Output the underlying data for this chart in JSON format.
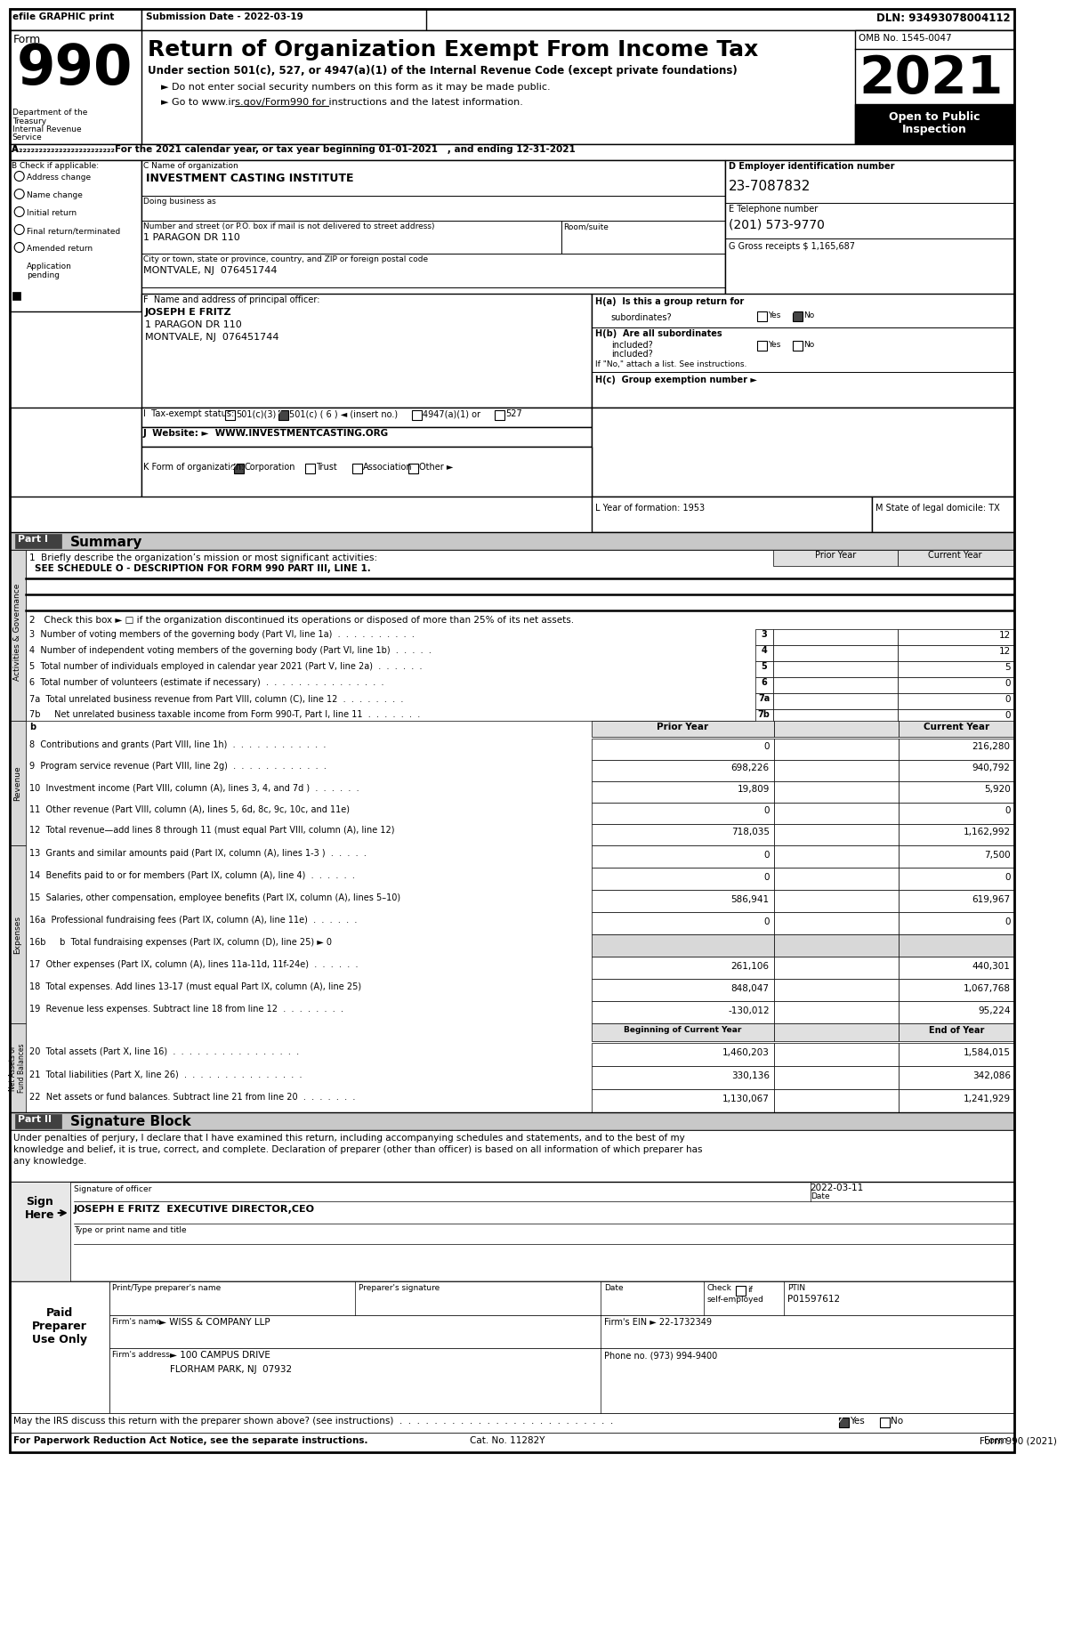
{
  "efile_line": "efile GRAPHIC print",
  "submission_date": "Submission Date - 2022-03-19",
  "dln": "DLN: 93493078004112",
  "form_number": "990",
  "title": "Return of Organization Exempt From Income Tax",
  "subtitle1": "Under section 501(c), 527, or 4947(a)(1) of the Internal Revenue Code (except private foundations)",
  "subtitle2": "► Do not enter social security numbers on this form as it may be made public.",
  "subtitle3": "► Go to www.irs.gov/Form990 for instructions and the latest information.",
  "year": "2021",
  "omb": "OMB No. 1545-0047",
  "dept": "Department of the\nTreasury\nInternal Revenue\nService",
  "line_a": "A₂₂₂₂For the 2021 calendar year, or tax year beginning 01-01-2021   , and ending 12-31-2021",
  "b_label": "B Check if applicable:",
  "c_label": "C Name of organization",
  "org_name": "INVESTMENT CASTING INSTITUTE",
  "dba_label": "Doing business as",
  "address_label": "Number and street (or P.O. box if mail is not delivered to street address)",
  "address_val": "1 PARAGON DR 110",
  "room_label": "Room/suite",
  "city_label": "City or town, state or province, country, and ZIP or foreign postal code",
  "city_val": "MONTVALE, NJ  076451744",
  "d_label": "D Employer identification number",
  "ein": "23-7087832",
  "e_label": "E Telephone number",
  "phone": "(201) 573-9770",
  "g_label": "G Gross receipts $ 1,165,687",
  "f_label": "F  Name and address of principal officer:",
  "officer_name": "JOSEPH E FRITZ",
  "officer_addr1": "1 PARAGON DR 110",
  "officer_addr2": "MONTVALE, NJ  076451744",
  "ha_label": "H(a)  Is this a group return for",
  "ha_sub": "subordinates?",
  "hb_label": "H(b)  Are all subordinates",
  "hb_sub": "included?",
  "hb_note": "If \"No,\" attach a list. See instructions.",
  "hc_label": "H(c)  Group exemption number ►",
  "i_label": "I  Tax-exempt status:",
  "j_label": "J  Website: ►  WWW.INVESTMENTCASTING.ORG",
  "k_label": "K Form of organization:",
  "l_label": "L Year of formation: 1953",
  "m_label": "M State of legal domicile: TX",
  "part1_label": "Part I",
  "part1_title": "Summary",
  "line1_label": "1  Briefly describe the organization’s mission or most significant activities:",
  "line1_val": "SEE SCHEDULE O - DESCRIPTION FOR FORM 990 PART III, LINE 1.",
  "line2_label": "2   Check this box ► □ if the organization discontinued its operations or disposed of more than 25% of its net assets.",
  "lines_345": [
    {
      "num": "3",
      "label": "Number of voting members of the governing body (Part VI, line 1a)  .  .  .  .  .  .  .  .  .  .",
      "col_num": "3",
      "prior": "",
      "current": "12"
    },
    {
      "num": "4",
      "label": "Number of independent voting members of the governing body (Part VI, line 1b)  .  .  .  .  .",
      "col_num": "4",
      "prior": "",
      "current": "12"
    },
    {
      "num": "5",
      "label": "Total number of individuals employed in calendar year 2021 (Part V, line 2a)  .  .  .  .  .  .",
      "col_num": "5",
      "prior": "",
      "current": "5"
    },
    {
      "num": "6",
      "label": "Total number of volunteers (estimate if necessary)  .  .  .  .  .  .  .  .  .  .  .  .  .  .  .",
      "col_num": "6",
      "prior": "",
      "current": "0"
    },
    {
      "num": "7a",
      "label": "Total unrelated business revenue from Part VIII, column (C), line 12  .  .  .  .  .  .  .  .",
      "col_num": "7a",
      "prior": "",
      "current": "0"
    },
    {
      "num": "7b",
      "label": "   Net unrelated business taxable income from Form 990-T, Part I, line 11  .  .  .  .  .  .  .",
      "col_num": "7b",
      "prior": "",
      "current": "0"
    }
  ],
  "revenue_lines": [
    {
      "num": "8",
      "label": "Contributions and grants (Part VIII, line 1h)  .  .  .  .  .  .  .  .  .  .  .  .",
      "prior": "0",
      "current": "216,280"
    },
    {
      "num": "9",
      "label": "Program service revenue (Part VIII, line 2g)  .  .  .  .  .  .  .  .  .  .  .  .",
      "prior": "698,226",
      "current": "940,792"
    },
    {
      "num": "10",
      "label": "Investment income (Part VIII, column (A), lines 3, 4, and 7d )  .  .  .  .  .  .",
      "prior": "19,809",
      "current": "5,920"
    },
    {
      "num": "11",
      "label": "Other revenue (Part VIII, column (A), lines 5, 6d, 8c, 9c, 10c, and 11e)",
      "prior": "0",
      "current": "0"
    },
    {
      "num": "12",
      "label": "Total revenue—add lines 8 through 11 (must equal Part VIII, column (A), line 12)",
      "prior": "718,035",
      "current": "1,162,992"
    }
  ],
  "expense_lines": [
    {
      "num": "13",
      "label": "Grants and similar amounts paid (Part IX, column (A), lines 1-3 )  .  .  .  .  .",
      "prior": "0",
      "current": "7,500",
      "gray": false
    },
    {
      "num": "14",
      "label": "Benefits paid to or for members (Part IX, column (A), line 4)  .  .  .  .  .  .",
      "prior": "0",
      "current": "0",
      "gray": false
    },
    {
      "num": "15",
      "label": "Salaries, other compensation, employee benefits (Part IX, column (A), lines 5–10)",
      "prior": "586,941",
      "current": "619,967",
      "gray": false
    },
    {
      "num": "16a",
      "label": "Professional fundraising fees (Part IX, column (A), line 11e)  .  .  .  .  .  .",
      "prior": "0",
      "current": "0",
      "gray": false
    },
    {
      "num": "16b",
      "label": "   b  Total fundraising expenses (Part IX, column (D), line 25) ► 0",
      "prior": "",
      "current": "",
      "gray": true
    },
    {
      "num": "17",
      "label": "Other expenses (Part IX, column (A), lines 11a-11d, 11f-24e)  .  .  .  .  .  .",
      "prior": "261,106",
      "current": "440,301",
      "gray": false
    },
    {
      "num": "18",
      "label": "Total expenses. Add lines 13-17 (must equal Part IX, column (A), line 25)",
      "prior": "848,047",
      "current": "1,067,768",
      "gray": false
    },
    {
      "num": "19",
      "label": "Revenue less expenses. Subtract line 18 from line 12  .  .  .  .  .  .  .  .",
      "prior": "-130,012",
      "current": "95,224",
      "gray": false
    }
  ],
  "netasset_lines": [
    {
      "num": "20",
      "label": "Total assets (Part X, line 16)  .  .  .  .  .  .  .  .  .  .  .  .  .  .  .  .",
      "prior": "1,460,203",
      "current": "1,584,015"
    },
    {
      "num": "21",
      "label": "Total liabilities (Part X, line 26)  .  .  .  .  .  .  .  .  .  .  .  .  .  .  .",
      "prior": "330,136",
      "current": "342,086"
    },
    {
      "num": "22",
      "label": "Net assets or fund balances. Subtract line 21 from line 20  .  .  .  .  .  .  .",
      "prior": "1,130,067",
      "current": "1,241,929"
    }
  ],
  "part2_label": "Part II",
  "part2_title": "Signature Block",
  "sig_text1": "Under penalties of perjury, I declare that I have examined this return, including accompanying schedules and statements, and to the best of my",
  "sig_text2": "knowledge and belief, it is true, correct, and complete. Declaration of preparer (other than officer) is based on all information of which preparer has",
  "sig_text3": "any knowledge.",
  "sig_date": "2022-03-11",
  "sig_title": "Signature of officer",
  "sig_date_label": "Date",
  "sig_name": "JOSEPH E FRITZ  EXECUTIVE DIRECTOR,CEO",
  "sig_name_label": "Type or print name and title",
  "preparer_name_label": "Print/Type preparer's name",
  "preparer_sig_label": "Preparer's signature",
  "preparer_date_label": "Date",
  "preparer_check_label": "Check",
  "preparer_check_sub": "if\nself-employed",
  "preparer_ptin_label": "PTIN",
  "preparer_ptin": "P01597612",
  "firm_name_label": "Firm's name",
  "firm_name": "► WISS & COMPANY LLP",
  "firm_ein_label": "Firm's EIN ► 22-1732349",
  "firm_addr_label": "Firm's address",
  "firm_addr": "► 100 CAMPUS DRIVE",
  "firm_city": "FLORHAM PARK, NJ  07932",
  "firm_phone_label": "Phone no. (973) 994-9400",
  "discuss_label": "May the IRS discuss this return with the preparer shown above? (see instructions)",
  "paperwork_label": "For Paperwork Reduction Act Notice, see the separate instructions.",
  "cat_label": "Cat. No. 11282Y",
  "form_footer": "Form 990 (2021)"
}
